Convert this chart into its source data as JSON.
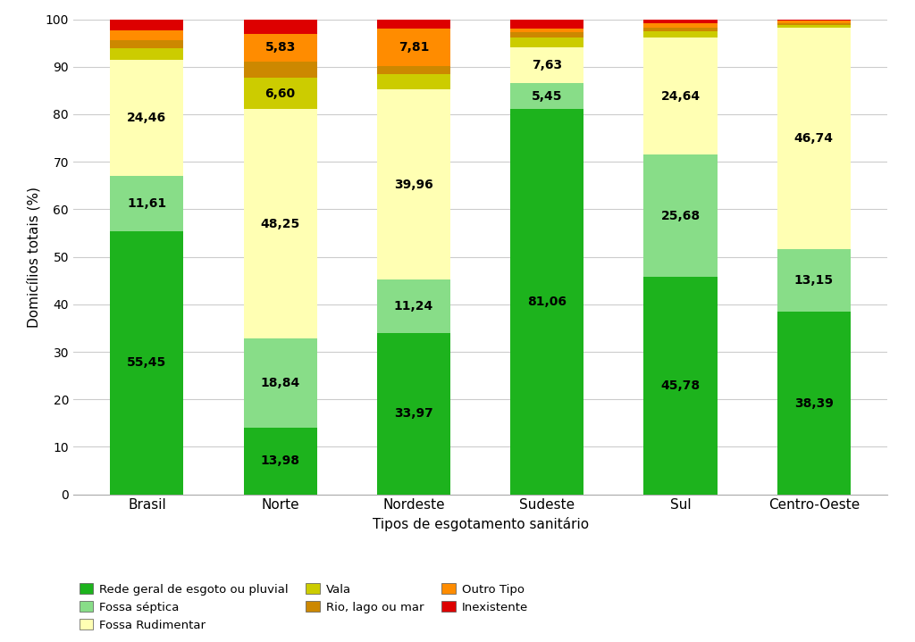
{
  "categories": [
    "Brasil",
    "Norte",
    "Nordeste",
    "Sudeste",
    "Sul",
    "Centro-Oeste"
  ],
  "series": [
    {
      "label": "Rede geral de esgoto ou pluvial",
      "color": "#1db31d",
      "values": [
        55.45,
        13.98,
        33.97,
        81.06,
        45.78,
        38.39
      ]
    },
    {
      "label": "Fossa séptica",
      "color": "#88dd88",
      "values": [
        11.61,
        18.84,
        11.24,
        5.45,
        25.68,
        13.15
      ]
    },
    {
      "label": "Fossa Rudimentar",
      "color": "#ffffb3",
      "values": [
        24.46,
        48.25,
        39.96,
        7.63,
        24.64,
        46.74
      ]
    },
    {
      "label": "Vala",
      "color": "#cccc00",
      "values": [
        2.3,
        6.6,
        3.2,
        2.0,
        1.3,
        0.55
      ]
    },
    {
      "label": "Rio, lago ou mar",
      "color": "#cc8800",
      "values": [
        1.8,
        3.5,
        1.8,
        1.1,
        0.8,
        0.4
      ]
    },
    {
      "label": "Outro Tipo",
      "color": "#ff8c00",
      "values": [
        2.06,
        5.83,
        7.81,
        0.76,
        0.98,
        0.41
      ]
    },
    {
      "label": "Inexistente",
      "color": "#dd0000",
      "values": [
        2.32,
        3.0,
        2.02,
        2.0,
        0.82,
        0.36
      ]
    }
  ],
  "legend_order": [
    [
      "Rede geral de esgoto ou pluvial",
      "Fossa séptica",
      "Fossa Rudimentar"
    ],
    [
      "Vala",
      "Rio, lago ou mar",
      "Outro Tipo"
    ],
    [
      "Inexistente"
    ]
  ],
  "ylabel": "Domicílios totais (%)",
  "xlabel": "Tipos de esgotamento sanitário",
  "ylim": [
    0,
    100
  ],
  "yticks": [
    0,
    10,
    20,
    30,
    40,
    50,
    60,
    70,
    80,
    90,
    100
  ],
  "bar_width": 0.55,
  "background_color": "#ffffff",
  "grid_color": "#cccccc",
  "label_threshold": 4.5
}
